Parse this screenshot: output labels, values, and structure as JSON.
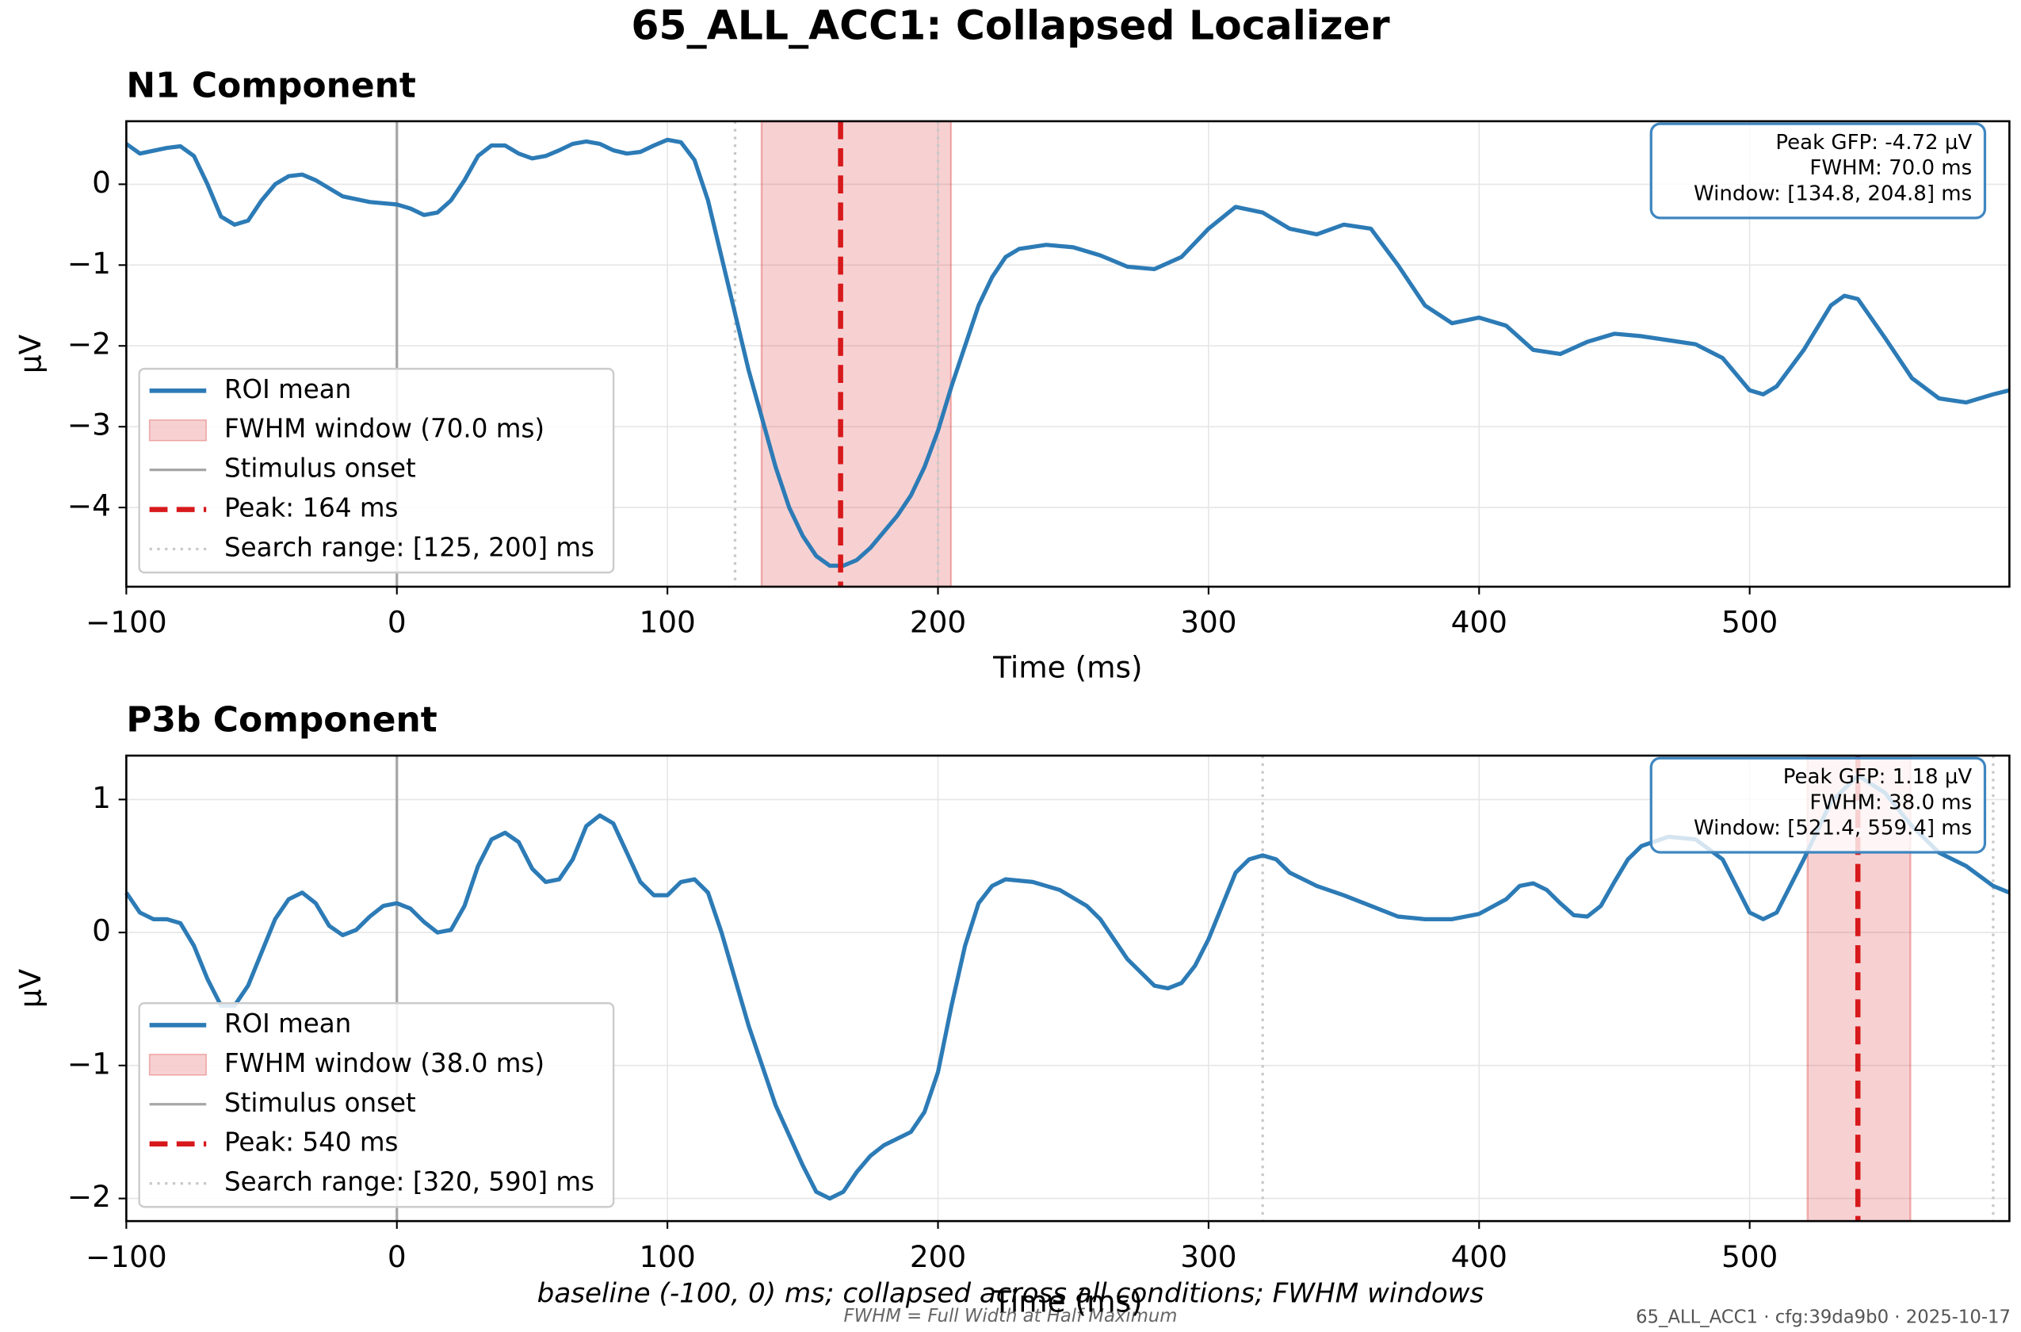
{
  "title": "65_ALL_ACC1: Collapsed Localizer",
  "caption": "baseline (-100, 0) ms; collapsed across all conditions; FWHM windows",
  "note": "FWHM = Full Width at Half Maximum",
  "stamp": "65_ALL_ACC1 · cfg:39da9b0 · 2025-10-17",
  "chart_data": [
    {
      "type": "line",
      "title": "N1 Component",
      "xlabel": "Time (ms)",
      "ylabel": "µV",
      "x": [
        -100,
        -95,
        -85,
        -80,
        -75,
        -70,
        -65,
        -60,
        -55,
        -50,
        -45,
        -40,
        -35,
        -30,
        -20,
        -10,
        0,
        5,
        10,
        15,
        20,
        25,
        30,
        35,
        40,
        45,
        50,
        55,
        60,
        65,
        70,
        75,
        80,
        85,
        90,
        95,
        100,
        105,
        110,
        115,
        120,
        125,
        130,
        135,
        140,
        145,
        150,
        155,
        160,
        165,
        170,
        175,
        180,
        185,
        190,
        195,
        200,
        205,
        210,
        215,
        220,
        225,
        230,
        240,
        250,
        260,
        270,
        280,
        290,
        300,
        310,
        320,
        330,
        340,
        350,
        360,
        370,
        380,
        390,
        400,
        410,
        420,
        430,
        440,
        450,
        460,
        470,
        480,
        490,
        500,
        505,
        510,
        520,
        530,
        535,
        540,
        550,
        560,
        570,
        580,
        590,
        596
      ],
      "series": [
        {
          "name": "ROI mean",
          "color": "#2c7bb6",
          "values": [
            0.5,
            0.38,
            0.45,
            0.47,
            0.35,
            0.0,
            -0.4,
            -0.5,
            -0.45,
            -0.2,
            0.0,
            0.1,
            0.12,
            0.05,
            -0.15,
            -0.22,
            -0.25,
            -0.3,
            -0.38,
            -0.35,
            -0.2,
            0.05,
            0.35,
            0.48,
            0.48,
            0.38,
            0.32,
            0.35,
            0.42,
            0.5,
            0.53,
            0.5,
            0.42,
            0.38,
            0.4,
            0.48,
            0.55,
            0.52,
            0.3,
            -0.2,
            -0.9,
            -1.6,
            -2.3,
            -2.9,
            -3.5,
            -4.0,
            -4.35,
            -4.6,
            -4.72,
            -4.72,
            -4.65,
            -4.5,
            -4.3,
            -4.1,
            -3.85,
            -3.5,
            -3.05,
            -2.5,
            -2.0,
            -1.5,
            -1.15,
            -0.9,
            -0.8,
            -0.75,
            -0.78,
            -0.88,
            -1.02,
            -1.05,
            -0.9,
            -0.55,
            -0.28,
            -0.35,
            -0.55,
            -0.62,
            -0.5,
            -0.55,
            -1.0,
            -1.5,
            -1.72,
            -1.65,
            -1.75,
            -2.05,
            -2.1,
            -1.95,
            -1.85,
            -1.88,
            -1.93,
            -1.98,
            -2.15,
            -2.55,
            -2.6,
            -2.5,
            -2.05,
            -1.5,
            -1.38,
            -1.42,
            -1.9,
            -2.4,
            -2.65,
            -2.7,
            -2.6,
            -2.55
          ]
        }
      ],
      "xlim": [
        -100,
        596
      ],
      "ylim": [
        -4.98,
        0.78
      ],
      "xticks": [
        {
          "value": -100,
          "label": "−100"
        },
        0,
        100,
        200,
        300,
        400,
        500
      ],
      "yticks": [
        0,
        {
          "value": -1,
          "label": "−1"
        },
        {
          "value": -2,
          "label": "−2"
        },
        {
          "value": -3,
          "label": "−3"
        },
        {
          "value": -4,
          "label": "−4"
        }
      ],
      "grid": true,
      "legend": "lower left",
      "fwhm_window": {
        "name": "FWHM window (70.0 ms)",
        "start": 134.8,
        "end": 204.8,
        "color": "#d7191c"
      },
      "onset": {
        "name": "Stimulus onset",
        "x": 0,
        "color": "#a6a6a6"
      },
      "peak": {
        "name": "Peak: 164 ms",
        "x": 164,
        "color": "#d7191c"
      },
      "search_range": {
        "name": "Search range: [125, 200] ms",
        "bounds": [
          125,
          200
        ],
        "color": "#c8c8c8"
      },
      "info_box": [
        "Peak GFP: -4.72 µV",
        "FWHM: 70.0 ms",
        "Window: [134.8, 204.8] ms"
      ]
    },
    {
      "type": "line",
      "title": "P3b Component",
      "xlabel": "Time (ms)",
      "ylabel": "µV",
      "x": [
        -100,
        -95,
        -90,
        -85,
        -80,
        -75,
        -70,
        -65,
        -60,
        -55,
        -50,
        -45,
        -40,
        -35,
        -30,
        -25,
        -20,
        -15,
        -10,
        -5,
        0,
        5,
        10,
        15,
        20,
        25,
        30,
        35,
        40,
        45,
        50,
        55,
        60,
        65,
        70,
        75,
        80,
        85,
        90,
        95,
        100,
        105,
        110,
        115,
        120,
        130,
        140,
        150,
        155,
        160,
        165,
        170,
        175,
        180,
        190,
        195,
        200,
        205,
        210,
        215,
        220,
        225,
        235,
        245,
        255,
        260,
        265,
        270,
        280,
        285,
        290,
        295,
        300,
        305,
        310,
        315,
        320,
        325,
        330,
        340,
        350,
        360,
        370,
        380,
        390,
        400,
        410,
        415,
        420,
        425,
        430,
        435,
        440,
        445,
        450,
        455,
        460,
        470,
        480,
        490,
        495,
        500,
        505,
        510,
        520,
        530,
        540,
        550,
        560,
        570,
        580,
        590,
        596
      ],
      "series": [
        {
          "name": "ROI mean",
          "color": "#2c7bb6",
          "values": [
            0.3,
            0.15,
            0.1,
            0.1,
            0.07,
            -0.1,
            -0.35,
            -0.55,
            -0.55,
            -0.4,
            -0.15,
            0.1,
            0.25,
            0.3,
            0.22,
            0.05,
            -0.02,
            0.02,
            0.12,
            0.2,
            0.22,
            0.18,
            0.08,
            0.0,
            0.02,
            0.2,
            0.5,
            0.7,
            0.75,
            0.68,
            0.48,
            0.38,
            0.4,
            0.55,
            0.8,
            0.88,
            0.82,
            0.6,
            0.38,
            0.28,
            0.28,
            0.38,
            0.4,
            0.3,
            0.0,
            -0.7,
            -1.3,
            -1.75,
            -1.95,
            -2.0,
            -1.95,
            -1.8,
            -1.68,
            -1.6,
            -1.5,
            -1.35,
            -1.05,
            -0.55,
            -0.1,
            0.22,
            0.35,
            0.4,
            0.38,
            0.32,
            0.2,
            0.1,
            -0.05,
            -0.2,
            -0.4,
            -0.42,
            -0.38,
            -0.25,
            -0.05,
            0.2,
            0.45,
            0.55,
            0.58,
            0.55,
            0.45,
            0.35,
            0.28,
            0.2,
            0.12,
            0.1,
            0.1,
            0.14,
            0.25,
            0.35,
            0.37,
            0.32,
            0.22,
            0.13,
            0.12,
            0.2,
            0.38,
            0.55,
            0.65,
            0.72,
            0.7,
            0.55,
            0.35,
            0.15,
            0.1,
            0.15,
            0.55,
            0.98,
            1.18,
            1.05,
            0.8,
            0.6,
            0.5,
            0.35,
            0.3
          ]
        }
      ],
      "xlim": [
        -100,
        596
      ],
      "ylim": [
        -2.17,
        1.33
      ],
      "xticks": [
        {
          "value": -100,
          "label": "−100"
        },
        0,
        100,
        200,
        300,
        400,
        500
      ],
      "yticks": [
        1,
        0,
        {
          "value": -1,
          "label": "−1"
        },
        {
          "value": -2,
          "label": "−2"
        }
      ],
      "grid": true,
      "legend": "lower left",
      "fwhm_window": {
        "name": "FWHM window (38.0 ms)",
        "start": 521.4,
        "end": 559.4,
        "color": "#d7191c"
      },
      "onset": {
        "name": "Stimulus onset",
        "x": 0,
        "color": "#a6a6a6"
      },
      "peak": {
        "name": "Peak: 540 ms",
        "x": 540,
        "color": "#d7191c"
      },
      "search_range": {
        "name": "Search range: [320, 590] ms",
        "bounds": [
          320,
          590
        ],
        "color": "#c8c8c8"
      },
      "info_box": [
        "Peak GFP: 1.18 µV",
        "FWHM: 38.0 ms",
        "Window: [521.4, 559.4] ms"
      ]
    }
  ]
}
